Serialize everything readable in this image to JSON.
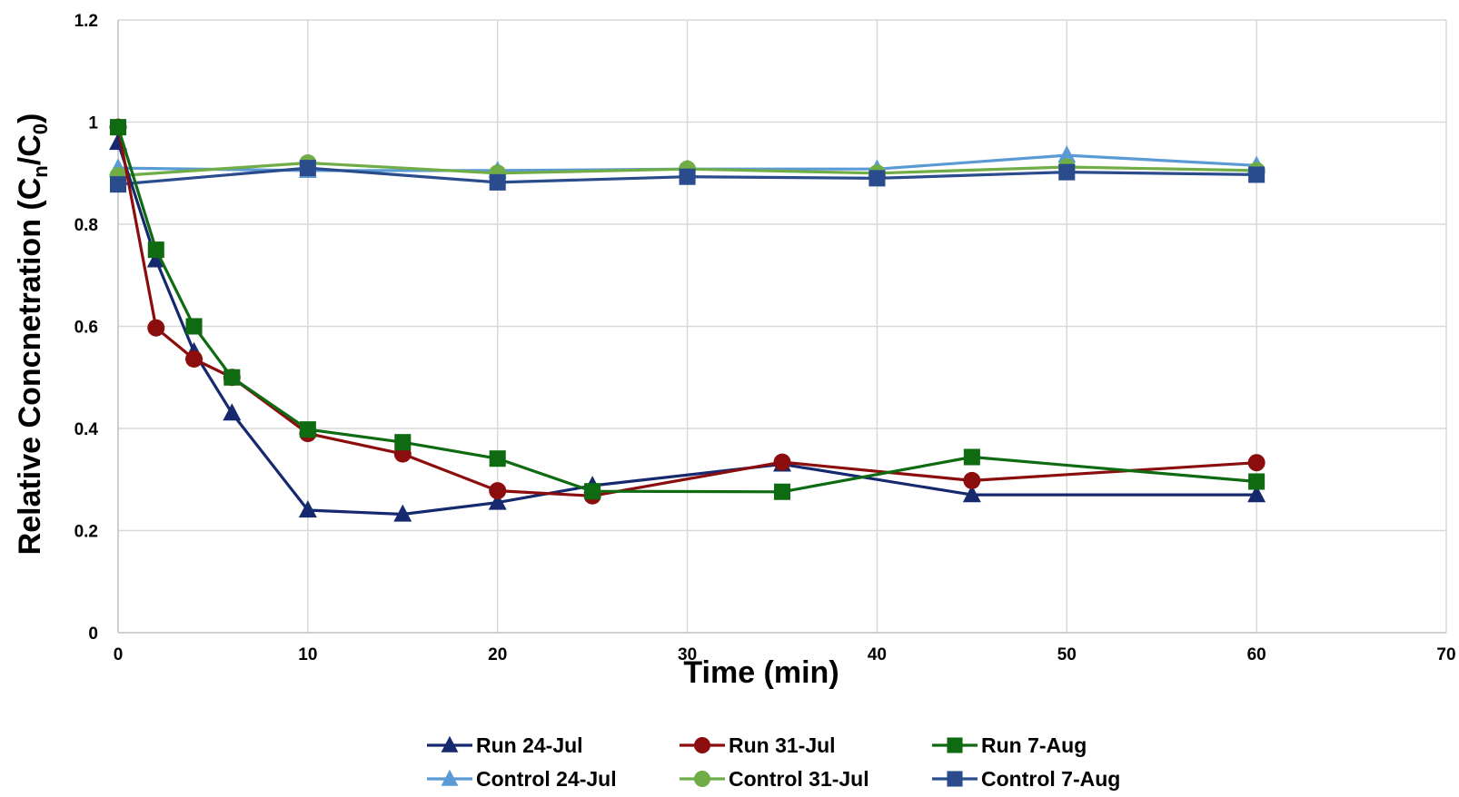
{
  "chart_data": {
    "type": "line",
    "xlabel": "Time (min)",
    "ylabel": {
      "main": "Relative Concnetration (C",
      "sub1": "n",
      "mid": "/C",
      "sub2": "0",
      "end": ")"
    },
    "xlim": [
      0,
      70
    ],
    "ylim": [
      0,
      1.2
    ],
    "xticks": [
      "0",
      "10",
      "20",
      "30",
      "40",
      "50",
      "60",
      "70"
    ],
    "yticks": [
      "0",
      "0.2",
      "0.4",
      "0.6",
      "0.8",
      "1",
      "1.2"
    ],
    "grid": true,
    "legend_position": "bottom",
    "series": [
      {
        "name": "Run 24-Jul",
        "color": "#17296e",
        "marker": "triangle",
        "points": [
          [
            0,
            0.96
          ],
          [
            2,
            0.73
          ],
          [
            4,
            0.55
          ],
          [
            6,
            0.43
          ],
          [
            10,
            0.24
          ],
          [
            15,
            0.232
          ],
          [
            20,
            0.255
          ],
          [
            25,
            0.288
          ],
          [
            35,
            0.33
          ],
          [
            45,
            0.27
          ],
          [
            60,
            0.27
          ]
        ]
      },
      {
        "name": "Run 31-Jul",
        "color": "#8b0d0d",
        "marker": "circle",
        "points": [
          [
            0,
            0.99
          ],
          [
            2,
            0.597
          ],
          [
            4,
            0.536
          ],
          [
            6,
            0.5
          ],
          [
            10,
            0.39
          ],
          [
            15,
            0.35
          ],
          [
            20,
            0.278
          ],
          [
            25,
            0.268
          ],
          [
            35,
            0.334
          ],
          [
            45,
            0.298
          ],
          [
            60,
            0.333
          ]
        ]
      },
      {
        "name": "Run 7-Aug",
        "color": "#0e6b12",
        "marker": "square",
        "points": [
          [
            0,
            0.99
          ],
          [
            2,
            0.75
          ],
          [
            4,
            0.6
          ],
          [
            6,
            0.5
          ],
          [
            10,
            0.398
          ],
          [
            15,
            0.373
          ],
          [
            20,
            0.341
          ],
          [
            25,
            0.277
          ],
          [
            35,
            0.276
          ],
          [
            45,
            0.344
          ],
          [
            60,
            0.296
          ]
        ]
      },
      {
        "name": "Control 24-Jul",
        "color": "#5b9bd5",
        "marker": "triangle",
        "points": [
          [
            0,
            0.91
          ],
          [
            10,
            0.905
          ],
          [
            20,
            0.905
          ],
          [
            30,
            0.908
          ],
          [
            40,
            0.908
          ],
          [
            50,
            0.935
          ],
          [
            60,
            0.915
          ]
        ]
      },
      {
        "name": "Control 31-Jul",
        "color": "#70ad47",
        "marker": "circle",
        "points": [
          [
            0,
            0.895
          ],
          [
            10,
            0.92
          ],
          [
            20,
            0.9
          ],
          [
            30,
            0.908
          ],
          [
            40,
            0.9
          ],
          [
            50,
            0.912
          ],
          [
            60,
            0.905
          ]
        ]
      },
      {
        "name": "Control 7-Aug",
        "color": "#2a4c8c",
        "marker": "square",
        "points": [
          [
            0,
            0.878
          ],
          [
            10,
            0.91
          ],
          [
            20,
            0.882
          ],
          [
            30,
            0.893
          ],
          [
            40,
            0.89
          ],
          [
            50,
            0.902
          ],
          [
            60,
            0.897
          ]
        ]
      }
    ]
  }
}
